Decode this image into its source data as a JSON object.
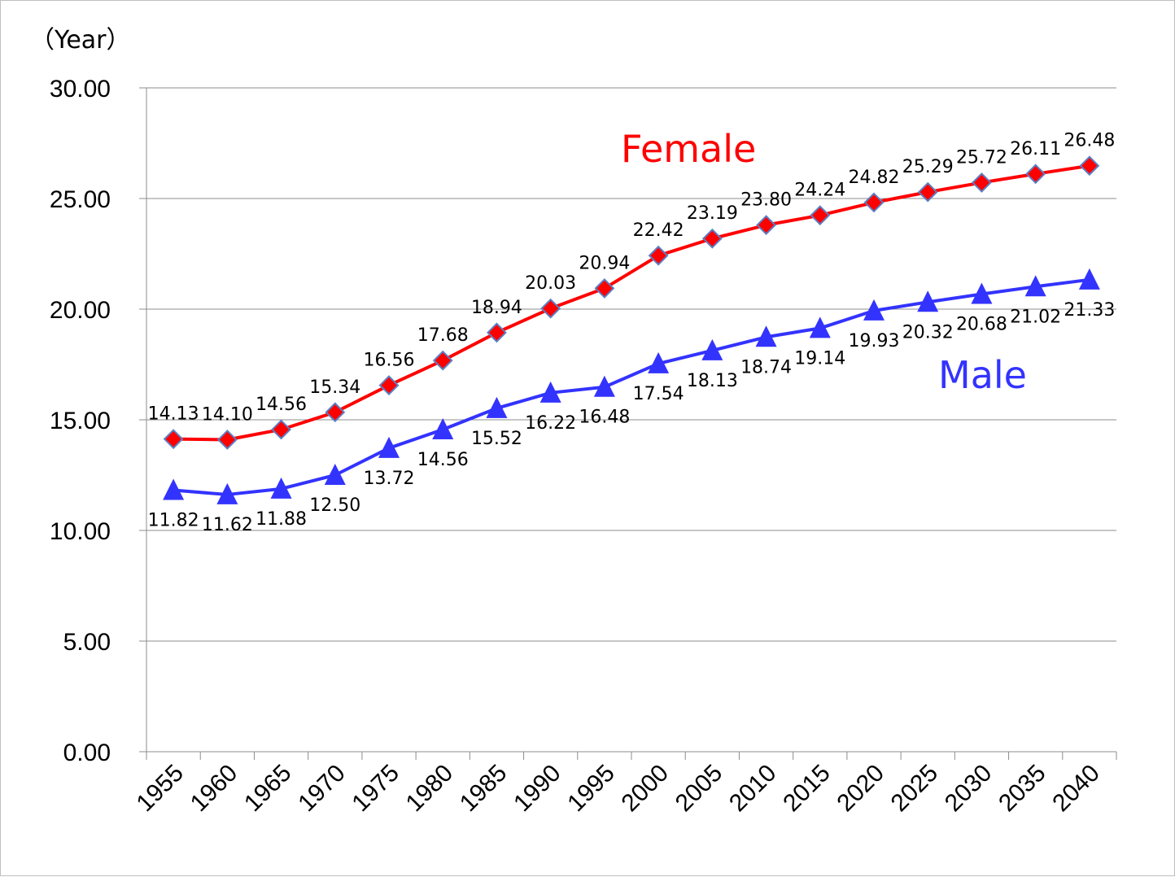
{
  "chart_data": {
    "type": "line",
    "title": "",
    "xlabel": "",
    "ylabel": "（Year）",
    "ylim": [
      0,
      30
    ],
    "yticks": [
      "0.00",
      "5.00",
      "10.00",
      "15.00",
      "20.00",
      "25.00",
      "30.00"
    ],
    "categories": [
      "1955",
      "1960",
      "1965",
      "1970",
      "1975",
      "1980",
      "1985",
      "1990",
      "1995",
      "2000",
      "2005",
      "2010",
      "2015",
      "2020",
      "2025",
      "2030",
      "2035",
      "2040"
    ],
    "grid": true,
    "series": [
      {
        "name": "Female",
        "color": "#ff0000",
        "marker": "diamond",
        "values": [
          14.13,
          14.1,
          14.56,
          15.34,
          16.56,
          17.68,
          18.94,
          20.03,
          20.94,
          22.42,
          23.19,
          23.8,
          24.24,
          24.82,
          25.29,
          25.72,
          26.11,
          26.48
        ],
        "labels": [
          "14.13",
          "14.10",
          "14.56",
          "15.34",
          "16.56",
          "17.68",
          "18.94",
          "20.03",
          "20.94",
          "22.42",
          "23.19",
          "23.80",
          "24.24",
          "24.82",
          "25.29",
          "25.72",
          "26.11",
          "26.48"
        ],
        "label_position": "above"
      },
      {
        "name": "Male",
        "color": "#3333ff",
        "marker": "triangle",
        "values": [
          11.82,
          11.62,
          11.88,
          12.5,
          13.72,
          14.56,
          15.52,
          16.22,
          16.48,
          17.54,
          18.13,
          18.74,
          19.14,
          19.93,
          20.32,
          20.68,
          21.02,
          21.33
        ],
        "labels": [
          "11.82",
          "11.62",
          "11.88",
          "12.50",
          "13.72",
          "14.56",
          "15.52",
          "16.22",
          "16.48",
          "17.54",
          "18.13",
          "18.74",
          "19.14",
          "19.93",
          "20.32",
          "20.68",
          "21.02",
          "21.33"
        ],
        "label_position": "below"
      }
    ]
  }
}
